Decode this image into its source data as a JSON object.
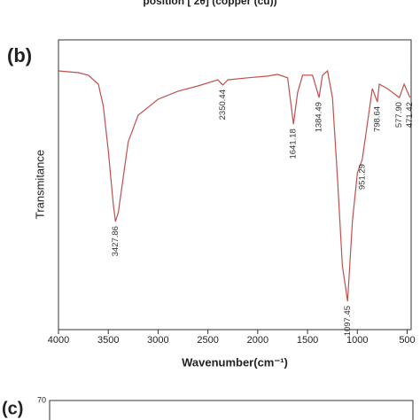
{
  "header_text": "position [ 2θ] (copper (cu))",
  "panel_label": "(b)",
  "chart_data": {
    "type": "line",
    "xlabel": "Wavenumber(cm⁻¹)",
    "ylabel": "Transmitance",
    "color": "#c0504d",
    "x": [
      4000,
      3800,
      3700,
      3600,
      3550,
      3500,
      3450,
      3427.86,
      3400,
      3350,
      3300,
      3200,
      3000,
      2800,
      2600,
      2400,
      2350.44,
      2300,
      2100,
      1900,
      1800,
      1700,
      1641.18,
      1600,
      1550,
      1450,
      1384.49,
      1350,
      1300,
      1250,
      1200,
      1150,
      1097.45,
      1050,
      1000,
      951.29,
      900,
      850,
      798.64,
      780,
      700,
      577.9,
      530,
      471.42
    ],
    "values": [
      89.3,
      88.7,
      87.8,
      84.7,
      77.1,
      61.8,
      43.4,
      37.3,
      40.4,
      52.6,
      64.8,
      74.0,
      79.5,
      82.3,
      84.1,
      86.2,
      84.4,
      86.2,
      86.9,
      87.5,
      88.1,
      86.9,
      70.9,
      81.7,
      87.8,
      87.8,
      80.1,
      87.8,
      89.3,
      80.1,
      52.6,
      22.0,
      9.8,
      37.3,
      54.1,
      58.7,
      70.9,
      83.2,
      78.6,
      84.7,
      83.2,
      80.1,
      84.7,
      80.1
    ],
    "annotations": [
      {
        "text": "3427.86",
        "x": 3427.86
      },
      {
        "text": "2350.44",
        "x": 2350.44
      },
      {
        "text": "1641.18",
        "x": 1641.18
      },
      {
        "text": "1384.49",
        "x": 1384.49
      },
      {
        "text": "1097.45",
        "x": 1097.45
      },
      {
        "text": "951.29",
        "x": 951.29
      },
      {
        "text": "798.64",
        "x": 798.64
      },
      {
        "text": "577.90",
        "x": 577.9
      },
      {
        "text": "471.42",
        "x": 471.42
      }
    ],
    "xlim": [
      4000,
      460
    ],
    "ylim": [
      0,
      100
    ],
    "xticks": [
      4000,
      3500,
      3000,
      2500,
      2000,
      1500,
      1000,
      500
    ]
  },
  "next_panel": {
    "label": "(c)",
    "tick": "70"
  }
}
